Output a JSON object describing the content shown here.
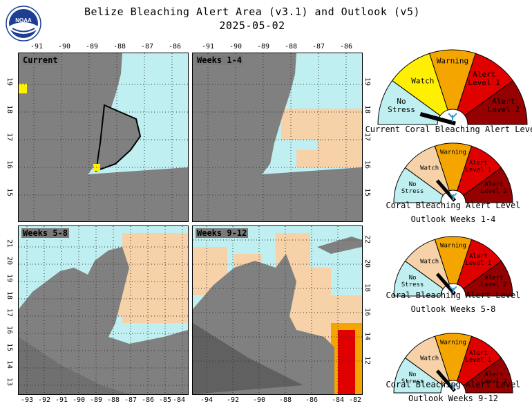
{
  "header": {
    "title": "Belize Bleaching Alert Area (v3.1) and Outlook (v5)",
    "date": "2025-05-02",
    "logo_text": "NOAA"
  },
  "colors": {
    "no_stress": "#bfeff0",
    "watch": "#f7d2a8",
    "watch_current": "#ffef00",
    "warning": "#f5a500",
    "alert1": "#e00000",
    "alert2": "#960000",
    "land": "#808080"
  },
  "panels": [
    {
      "label": "Current",
      "lon_ticks": [
        "-91",
        "-90",
        "-89",
        "-88",
        "-87",
        "-86"
      ],
      "lat_ticks": [
        "19",
        "18",
        "17",
        "16",
        "15"
      ]
    },
    {
      "label": "Weeks 1-4",
      "lon_ticks": [
        "-91",
        "-90",
        "-89",
        "-88",
        "-87",
        "-86"
      ],
      "lat_ticks": [
        "19",
        "18",
        "17",
        "16",
        "15"
      ]
    },
    {
      "label": "Weeks 5-8",
      "lon_ticks": [
        "-93",
        "-92",
        "-91",
        "-90",
        "-89",
        "-88",
        "-87",
        "-86",
        "-85",
        "-84"
      ],
      "lat_ticks": [
        "21",
        "20",
        "19",
        "18",
        "17",
        "16",
        "15",
        "14",
        "13"
      ]
    },
    {
      "label": "Weeks 9-12",
      "lon_ticks": [
        "-94",
        "-92",
        "-90",
        "-88",
        "-86",
        "-84",
        "-82"
      ],
      "lat_ticks": [
        "22",
        "20",
        "18",
        "16",
        "14",
        "12"
      ]
    }
  ],
  "gauges": [
    {
      "caption1": "Current Coral Bleaching Alert Level",
      "caption2": "",
      "level": "no_stress"
    },
    {
      "caption1": "Coral Bleaching Alert Level",
      "caption2": "Outlook Weeks 1-4",
      "level": "watch"
    },
    {
      "caption1": "Coral Bleaching Alert Level",
      "caption2": "Outlook Weeks 5-8",
      "level": "watch"
    },
    {
      "caption1": "Coral Bleaching Alert Level",
      "caption2": "Outlook Weeks 9-12",
      "level": "watch"
    }
  ],
  "gauge_labels": {
    "no_stress": [
      "No",
      "Stress"
    ],
    "watch": "Watch",
    "warning": "Warning",
    "alert1": [
      "Alert",
      "Level 1"
    ],
    "alert2": [
      "Alert",
      "Level 2"
    ]
  }
}
